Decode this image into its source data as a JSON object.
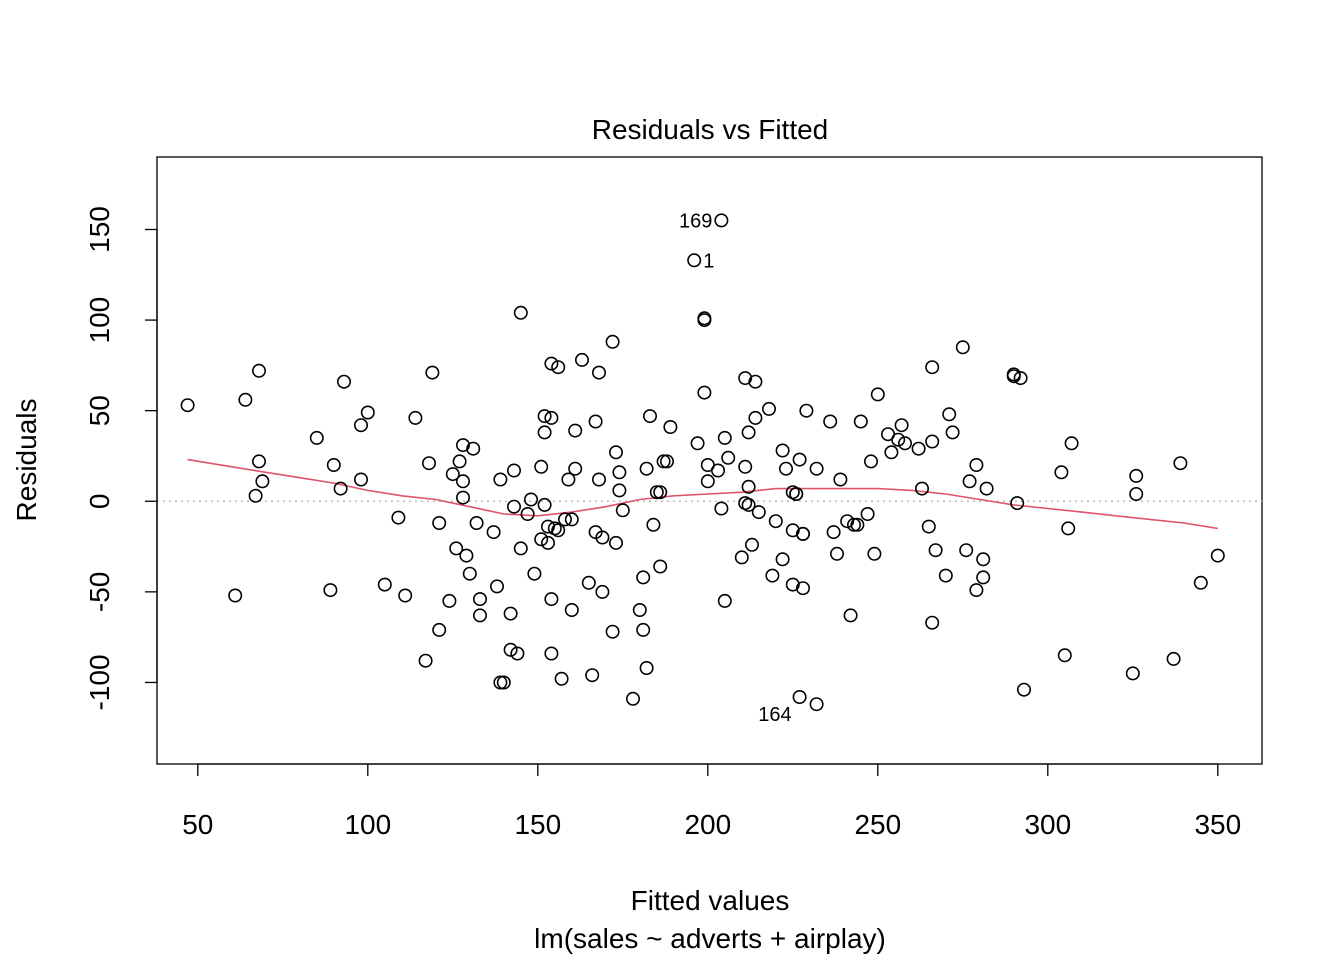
{
  "chart_data": {
    "type": "scatter",
    "title": "Residuals vs Fitted",
    "xlabel": "Fitted values",
    "subtitle": "lm(sales ~ adverts + airplay)",
    "ylabel": "Residuals",
    "xlim": [
      38,
      363
    ],
    "ylim": [
      -145,
      190
    ],
    "xticks": [
      50,
      100,
      150,
      200,
      250,
      300,
      350
    ],
    "yticks": [
      -100,
      -50,
      0,
      50,
      100,
      150
    ],
    "xtick_labels": [
      "50",
      "100",
      "150",
      "200",
      "250",
      "300",
      "350"
    ],
    "ytick_labels": [
      "-100",
      "-50",
      "0",
      "50",
      "100",
      "150"
    ],
    "reference_line": {
      "y": 0,
      "style": "dotted",
      "color": "#bbbbbb"
    },
    "smooth_color": "#df536b",
    "point_color": "#000000",
    "grid": false,
    "legend": "none",
    "points": [
      [
        47,
        53
      ],
      [
        61,
        -52
      ],
      [
        64,
        56
      ],
      [
        67,
        3
      ],
      [
        68,
        72
      ],
      [
        68,
        22
      ],
      [
        69,
        11
      ],
      [
        85,
        35
      ],
      [
        89,
        -49
      ],
      [
        90,
        20
      ],
      [
        92,
        7
      ],
      [
        93,
        66
      ],
      [
        98,
        12
      ],
      [
        98,
        42
      ],
      [
        100,
        49
      ],
      [
        105,
        -46
      ],
      [
        109,
        -9
      ],
      [
        111,
        -52
      ],
      [
        114,
        46
      ],
      [
        117,
        -88
      ],
      [
        118,
        21
      ],
      [
        119,
        71
      ],
      [
        121,
        -71
      ],
      [
        121,
        -12
      ],
      [
        124,
        -55
      ],
      [
        125,
        15
      ],
      [
        126,
        -26
      ],
      [
        127,
        22
      ],
      [
        128,
        2
      ],
      [
        128,
        31
      ],
      [
        128,
        11
      ],
      [
        129,
        -30
      ],
      [
        130,
        -40
      ],
      [
        131,
        29
      ],
      [
        132,
        -12
      ],
      [
        133,
        -63
      ],
      [
        133,
        -54
      ],
      [
        137,
        -17
      ],
      [
        138,
        -47
      ],
      [
        139,
        12
      ],
      [
        139,
        -100
      ],
      [
        140,
        -100
      ],
      [
        142,
        -62
      ],
      [
        142,
        -82
      ],
      [
        143,
        -3
      ],
      [
        143,
        17
      ],
      [
        144,
        -84
      ],
      [
        145,
        104
      ],
      [
        145,
        -26
      ],
      [
        147,
        -7
      ],
      [
        148,
        1
      ],
      [
        149,
        -40
      ],
      [
        151,
        19
      ],
      [
        151,
        -21
      ],
      [
        152,
        38
      ],
      [
        152,
        47
      ],
      [
        152,
        -2
      ],
      [
        153,
        -23
      ],
      [
        153,
        -14
      ],
      [
        154,
        -54
      ],
      [
        154,
        -84
      ],
      [
        154,
        76
      ],
      [
        154,
        46
      ],
      [
        155,
        -15
      ],
      [
        156,
        74
      ],
      [
        156,
        -16
      ],
      [
        157,
        -98
      ],
      [
        158,
        -10
      ],
      [
        159,
        12
      ],
      [
        160,
        -10
      ],
      [
        160,
        -60
      ],
      [
        161,
        39
      ],
      [
        161,
        18
      ],
      [
        163,
        78
      ],
      [
        165,
        -45
      ],
      [
        166,
        -96
      ],
      [
        167,
        44
      ],
      [
        167,
        -17
      ],
      [
        168,
        71
      ],
      [
        168,
        12
      ],
      [
        169,
        -20
      ],
      [
        169,
        -50
      ],
      [
        172,
        88
      ],
      [
        172,
        -72
      ],
      [
        173,
        -23
      ],
      [
        173,
        27
      ],
      [
        174,
        6
      ],
      [
        174,
        16
      ],
      [
        175,
        -5
      ],
      [
        178,
        -109
      ],
      [
        180,
        -60
      ],
      [
        181,
        -71
      ],
      [
        181,
        -42
      ],
      [
        182,
        -92
      ],
      [
        182,
        18
      ],
      [
        183,
        47
      ],
      [
        184,
        -13
      ],
      [
        185,
        5
      ],
      [
        186,
        -36
      ],
      [
        186,
        5
      ],
      [
        187,
        22
      ],
      [
        188,
        22
      ],
      [
        189,
        41
      ],
      [
        196,
        133
      ],
      [
        197,
        32
      ],
      [
        199,
        100
      ],
      [
        199,
        101
      ],
      [
        199,
        60
      ],
      [
        200,
        11
      ],
      [
        200,
        20
      ],
      [
        203,
        17
      ],
      [
        204,
        -4
      ],
      [
        204,
        155
      ],
      [
        205,
        35
      ],
      [
        205,
        -55
      ],
      [
        206,
        24
      ],
      [
        210,
        -31
      ],
      [
        211,
        68
      ],
      [
        211,
        -1
      ],
      [
        211,
        19
      ],
      [
        212,
        38
      ],
      [
        212,
        8
      ],
      [
        212,
        -2
      ],
      [
        213,
        -24
      ],
      [
        214,
        46
      ],
      [
        214,
        66
      ],
      [
        215,
        -6
      ],
      [
        218,
        51
      ],
      [
        219,
        -41
      ],
      [
        220,
        -11
      ],
      [
        222,
        -32
      ],
      [
        222,
        28
      ],
      [
        223,
        18
      ],
      [
        225,
        -46
      ],
      [
        225,
        -16
      ],
      [
        225,
        5
      ],
      [
        226,
        4
      ],
      [
        226,
        4
      ],
      [
        227,
        -108
      ],
      [
        227,
        23
      ],
      [
        228,
        -48
      ],
      [
        228,
        -18
      ],
      [
        228,
        -18
      ],
      [
        229,
        50
      ],
      [
        232,
        -112
      ],
      [
        232,
        18
      ],
      [
        236,
        44
      ],
      [
        237,
        -17
      ],
      [
        238,
        -29
      ],
      [
        239,
        12
      ],
      [
        241,
        -11
      ],
      [
        242,
        -63
      ],
      [
        243,
        -13
      ],
      [
        244,
        -13
      ],
      [
        245,
        44
      ],
      [
        247,
        -7
      ],
      [
        248,
        22
      ],
      [
        249,
        -29
      ],
      [
        250,
        59
      ],
      [
        253,
        37
      ],
      [
        254,
        27
      ],
      [
        256,
        34
      ],
      [
        257,
        42
      ],
      [
        258,
        32
      ],
      [
        262,
        29
      ],
      [
        263,
        7
      ],
      [
        265,
        -14
      ],
      [
        266,
        -67
      ],
      [
        266,
        74
      ],
      [
        266,
        33
      ],
      [
        267,
        -27
      ],
      [
        270,
        -41
      ],
      [
        271,
        48
      ],
      [
        272,
        38
      ],
      [
        275,
        85
      ],
      [
        276,
        -27
      ],
      [
        277,
        11
      ],
      [
        279,
        20
      ],
      [
        279,
        -49
      ],
      [
        281,
        -32
      ],
      [
        281,
        -42
      ],
      [
        282,
        7
      ],
      [
        290,
        70
      ],
      [
        290,
        69
      ],
      [
        291,
        -1
      ],
      [
        292,
        68
      ],
      [
        293,
        -104
      ],
      [
        304,
        16
      ],
      [
        305,
        -85
      ],
      [
        306,
        -15
      ],
      [
        307,
        32
      ],
      [
        325,
        -95
      ],
      [
        326,
        14
      ],
      [
        326,
        4
      ],
      [
        337,
        -87
      ],
      [
        339,
        21
      ],
      [
        345,
        -45
      ],
      [
        350,
        -30
      ]
    ],
    "smooth": [
      [
        47,
        23
      ],
      [
        60,
        19
      ],
      [
        70,
        16
      ],
      [
        80,
        13
      ],
      [
        90,
        10
      ],
      [
        100,
        6
      ],
      [
        110,
        3
      ],
      [
        120,
        1
      ],
      [
        130,
        -3
      ],
      [
        140,
        -7
      ],
      [
        150,
        -8
      ],
      [
        160,
        -6
      ],
      [
        170,
        -3
      ],
      [
        180,
        1
      ],
      [
        190,
        3
      ],
      [
        200,
        4
      ],
      [
        210,
        5
      ],
      [
        220,
        7
      ],
      [
        230,
        7
      ],
      [
        240,
        7
      ],
      [
        250,
        7
      ],
      [
        260,
        6
      ],
      [
        270,
        4
      ],
      [
        280,
        1
      ],
      [
        290,
        -2
      ],
      [
        300,
        -4
      ],
      [
        310,
        -6
      ],
      [
        320,
        -8
      ],
      [
        330,
        -10
      ],
      [
        340,
        -12
      ],
      [
        350,
        -15
      ]
    ],
    "annotations": [
      {
        "text": "169",
        "x": 204,
        "y": 155,
        "side": "left"
      },
      {
        "text": "1",
        "x": 196,
        "y": 133,
        "side": "right"
      },
      {
        "text": "164",
        "x": 227,
        "y": -108,
        "side": "left-below"
      }
    ]
  }
}
